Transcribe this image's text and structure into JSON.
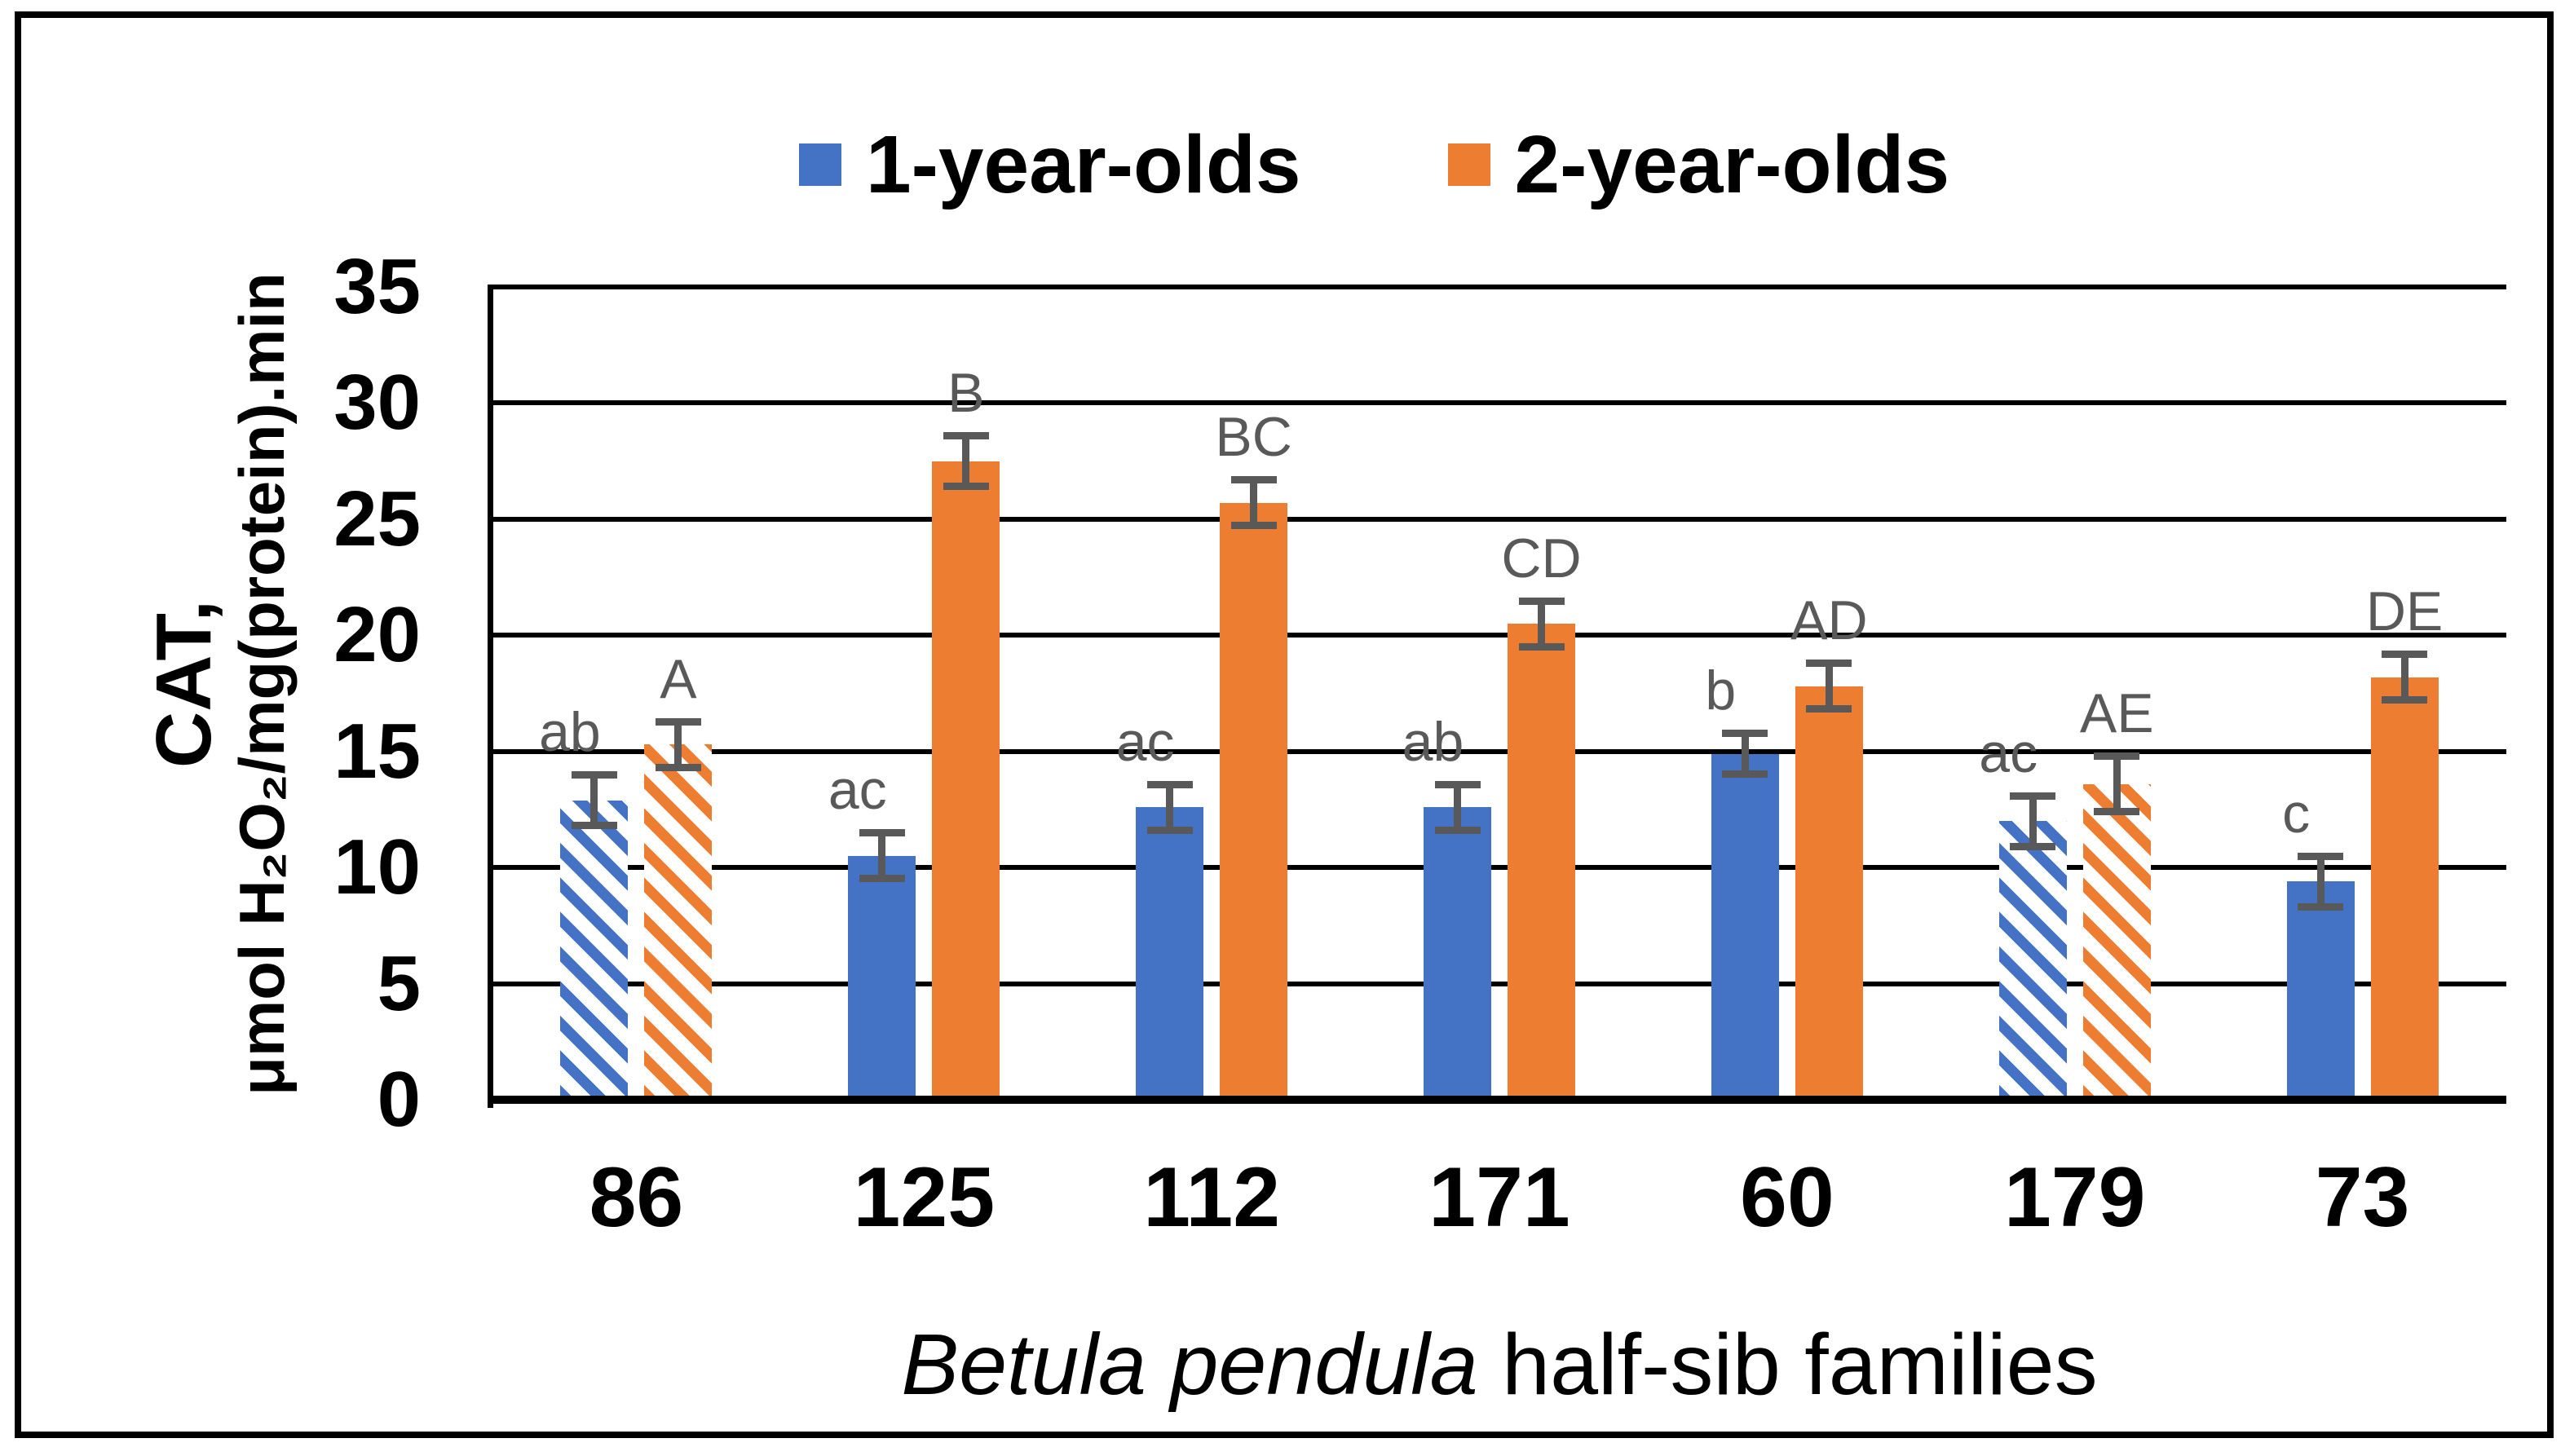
{
  "chart_data": {
    "type": "bar",
    "title": "",
    "categories": [
      "86",
      "125",
      "112",
      "171",
      "60",
      "179",
      "73"
    ],
    "series": [
      {
        "name": "1-year-olds",
        "color": "#4472C4",
        "values": [
          12.9,
          10.5,
          12.6,
          12.6,
          14.9,
          12.0,
          9.4
        ],
        "error_bars": [
          1.1,
          1.0,
          1.0,
          1.0,
          0.9,
          1.1,
          1.1
        ],
        "significance_letters": [
          "ab",
          "ac",
          "ac",
          "ab",
          "b",
          "ac",
          "c"
        ]
      },
      {
        "name": "2-year-olds",
        "color": "#ED7D31",
        "values": [
          15.3,
          27.5,
          25.7,
          20.5,
          17.8,
          13.6,
          18.2
        ],
        "error_bars": [
          1.0,
          1.1,
          1.0,
          1.0,
          1.0,
          1.2,
          1.0
        ],
        "significance_letters": [
          "A",
          "B",
          "BC",
          "CD",
          "AD",
          "AE",
          "DE"
        ]
      }
    ],
    "hatched_categories": [
      "86",
      "179"
    ],
    "ylabel_line1": "CAT,",
    "ylabel_line2": "μmol H₂O₂/mg(protein).min",
    "xlabel_italic": "Betula pendula",
    "xlabel_regular": " half-sib families",
    "ylim": [
      0,
      35
    ],
    "yticks": [
      0,
      5,
      10,
      15,
      20,
      25,
      30,
      35
    ],
    "grid": true,
    "legend_position": "top-center",
    "axis_color": "#000000",
    "error_bar_color": "#595959",
    "letter_color": "#595959"
  }
}
